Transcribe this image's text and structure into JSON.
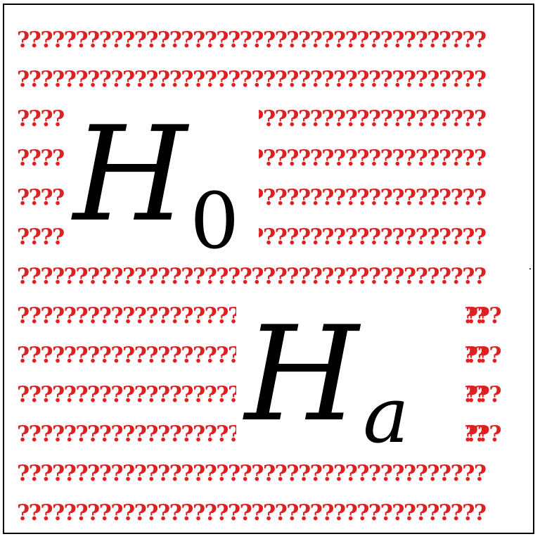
{
  "colors": {
    "question_mark": "#e02020",
    "frame": "#000000",
    "background": "#ffffff",
    "symbol": "#000000"
  },
  "pattern_glyph": "?",
  "hypotheses": {
    "null": {
      "main": "H",
      "sub": "0"
    },
    "alternative": {
      "main": "H",
      "sub": "a"
    }
  }
}
